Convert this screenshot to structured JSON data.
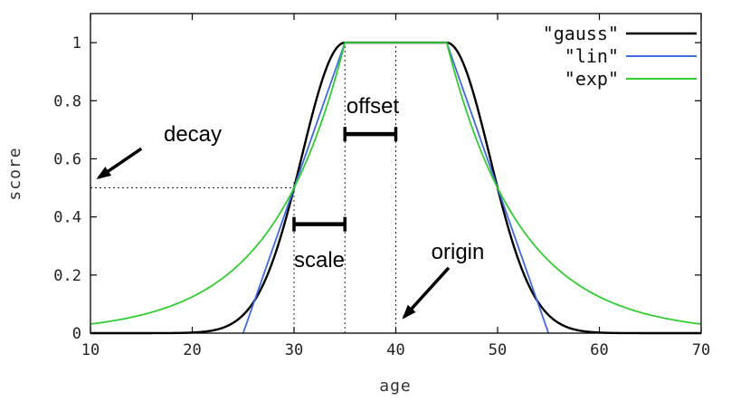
{
  "chart_data": {
    "type": "line",
    "title": "",
    "xlabel": "age",
    "ylabel": "score",
    "xlim": [
      10,
      70
    ],
    "ylim": [
      0,
      1.1
    ],
    "xticks": [
      "10",
      "20",
      "30",
      "40",
      "50",
      "60",
      "70"
    ],
    "xtick_values": [
      10,
      20,
      30,
      40,
      50,
      60,
      70
    ],
    "yticks": [
      "0",
      "0.2",
      "0.4",
      "0.6",
      "0.8",
      "1"
    ],
    "ytick_values": [
      0,
      0.2,
      0.4,
      0.6,
      0.8,
      1
    ],
    "grid": false,
    "legend_position": "top-right-inside",
    "decay_params": {
      "origin": 40,
      "offset": 5,
      "scale": 5,
      "decay": 0.5
    },
    "series": [
      {
        "name": "\"gauss\"",
        "fn": "gauss",
        "color": "#000000",
        "width": 2.4,
        "domain": [
          10,
          70
        ]
      },
      {
        "name": "\"lin\"",
        "fn": "lin",
        "color": "#4169e1",
        "width": 1.8,
        "domain": [
          25,
          55
        ]
      },
      {
        "name": "\"exp\"",
        "fn": "exp",
        "color": "#33cc33",
        "width": 1.8,
        "domain": [
          10,
          70
        ]
      }
    ],
    "annotations": [
      {
        "type": "text",
        "label": "decay"
      },
      {
        "type": "text",
        "label": "offset"
      },
      {
        "type": "text",
        "label": "scale"
      },
      {
        "type": "text",
        "label": "origin"
      },
      {
        "type": "hline",
        "y": 0.5,
        "x_start": 10,
        "x_end": 30
      },
      {
        "type": "vline",
        "x": 30,
        "y_start": 0,
        "y_end": 0.52
      },
      {
        "type": "vline",
        "x": 35,
        "y_start": 0,
        "y_end": 1.0
      },
      {
        "type": "vline",
        "x": 40,
        "y_start": 0,
        "y_end": 1.0
      },
      {
        "type": "bracket",
        "x_start": 35,
        "x_end": 40,
        "y": 0.685
      },
      {
        "type": "bracket",
        "x_start": 30,
        "x_end": 35,
        "y": 0.375
      },
      {
        "type": "arrow",
        "from": [
          15.0,
          0.635
        ],
        "to": [
          10.8,
          0.535
        ]
      },
      {
        "type": "arrow",
        "from": [
          45.2,
          0.225
        ],
        "to": [
          40.8,
          0.055
        ]
      }
    ]
  }
}
